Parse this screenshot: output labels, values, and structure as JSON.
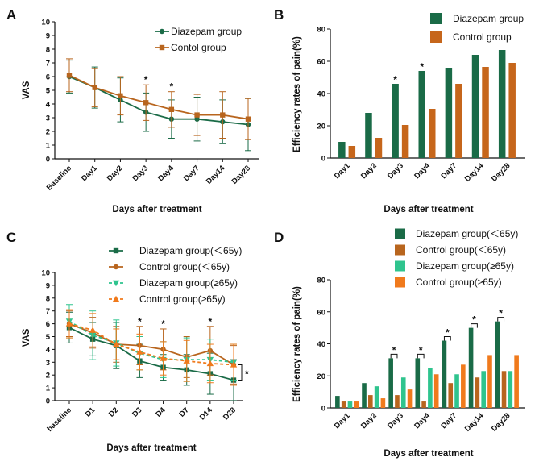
{
  "chart_data": [
    {
      "panel": "A",
      "type": "line",
      "xlabel": "Days after treatment",
      "ylabel": "VAS",
      "ylim": [
        0,
        10
      ],
      "yticks": [
        0,
        1,
        2,
        3,
        4,
        5,
        6,
        7,
        8,
        9,
        10
      ],
      "categories": [
        "Baseline",
        "Day1",
        "Day2",
        "Day3",
        "Day4",
        "Day7",
        "Day14",
        "Day28"
      ],
      "series": [
        {
          "name": "Diazepam group",
          "color": "#1a6b47",
          "marker": "circle",
          "dashed": false,
          "values": [
            6.0,
            5.2,
            4.3,
            3.4,
            2.9,
            2.9,
            2.7,
            2.5
          ],
          "errors": [
            1.2,
            1.5,
            1.6,
            1.4,
            1.4,
            1.6,
            1.6,
            1.9
          ]
        },
        {
          "name": "Contol group",
          "color": "#b8651e",
          "marker": "square",
          "dashed": false,
          "values": [
            6.1,
            5.2,
            4.6,
            4.1,
            3.6,
            3.2,
            3.2,
            2.9
          ],
          "errors": [
            1.2,
            1.4,
            1.4,
            1.3,
            1.3,
            1.5,
            1.7,
            1.5
          ]
        }
      ],
      "significance": [
        {
          "label": "*",
          "category": "Day3"
        },
        {
          "label": "*",
          "category": "Day4"
        }
      ],
      "legend_position": "top-right"
    },
    {
      "panel": "B",
      "type": "bar",
      "xlabel": "Days after treatment",
      "ylabel": "Efficiency rates of pain(%)",
      "ylim": [
        0,
        80
      ],
      "yticks": [
        0,
        20,
        40,
        60,
        80
      ],
      "categories": [
        "Day1",
        "Day2",
        "Day3",
        "Day4",
        "Day7",
        "Day14",
        "Day28"
      ],
      "series": [
        {
          "name": "Diazepam group",
          "color": "#1a6b47",
          "values": [
            10,
            28,
            46,
            54,
            56,
            64,
            67
          ]
        },
        {
          "name": "Control group",
          "color": "#c6661b",
          "values": [
            7.5,
            12.5,
            20.5,
            30.5,
            46,
            56.5,
            59
          ]
        }
      ],
      "significance": [
        {
          "label": "*",
          "category": "Day3"
        },
        {
          "label": "*",
          "category": "Day4"
        }
      ],
      "legend_position": "top-left"
    },
    {
      "panel": "C",
      "type": "line",
      "xlabel": "Days after treatment",
      "ylabel": "VAS",
      "ylim": [
        0,
        10
      ],
      "yticks": [
        0,
        1,
        2,
        3,
        4,
        5,
        6,
        7,
        8,
        9,
        10
      ],
      "categories": [
        "baseline",
        "D1",
        "D2",
        "D3",
        "D4",
        "D7",
        "D14",
        "D28"
      ],
      "series": [
        {
          "name": "Diazepam group(＜65y)",
          "color": "#1a6b47",
          "marker": "square",
          "dashed": false,
          "values": [
            5.7,
            4.8,
            4.3,
            3.1,
            2.6,
            2.4,
            2.1,
            1.6
          ],
          "errors": [
            1.2,
            1.3,
            1.8,
            1.3,
            1.0,
            1.2,
            1.6,
            1.6
          ]
        },
        {
          "name": "Control group(＜65y)",
          "color": "#b8651e",
          "marker": "circle",
          "dashed": false,
          "values": [
            6.0,
            5.3,
            4.4,
            4.3,
            4.0,
            3.4,
            3.9,
            2.8
          ],
          "errors": [
            1.0,
            1.2,
            1.4,
            1.5,
            1.6,
            1.6,
            1.9,
            1.5
          ]
        },
        {
          "name": "Diazepam group(≥65y)",
          "color": "#2fc48e",
          "marker": "triangle-down",
          "dashed": true,
          "values": [
            6.2,
            5.1,
            4.5,
            3.7,
            3.2,
            3.2,
            3.2,
            3.0
          ],
          "errors": [
            1.3,
            1.9,
            1.8,
            1.3,
            1.4,
            1.7,
            1.6,
            1.4
          ]
        },
        {
          "name": "Control group(≥65y)",
          "color": "#f07a1c",
          "marker": "triangle-up",
          "dashed": true,
          "values": [
            6.0,
            5.5,
            4.4,
            3.8,
            3.3,
            3.1,
            2.9,
            2.8
          ],
          "errors": [
            1.1,
            1.3,
            1.2,
            1.4,
            1.3,
            1.6,
            1.5,
            1.6
          ]
        }
      ],
      "significance": [
        {
          "label": "*",
          "category": "D3"
        },
        {
          "label": "*",
          "category": "D4"
        },
        {
          "label": "*",
          "category": "D14"
        },
        {
          "label": "*",
          "category": "D28",
          "bracket": true
        }
      ],
      "legend_position": "top-right"
    },
    {
      "panel": "D",
      "type": "bar",
      "xlabel": "Days after treatment",
      "ylabel": "Efficiency rates of pain(%)",
      "ylim": [
        0,
        80
      ],
      "yticks": [
        0,
        20,
        40,
        60,
        80
      ],
      "categories": [
        "Day1",
        "Day2",
        "Day3",
        "Day4",
        "Day7",
        "Day14",
        "Day28"
      ],
      "series": [
        {
          "name": "Diazepam group(＜65y)",
          "color": "#1a6b47",
          "values": [
            7.5,
            15.5,
            31,
            31,
            42,
            50,
            54
          ]
        },
        {
          "name": "Control group(＜65y)",
          "color": "#b8651e",
          "values": [
            4,
            8,
            8,
            4,
            15.5,
            19,
            23
          ]
        },
        {
          "name": "Diazepam group(≥65y)",
          "color": "#2fc48e",
          "values": [
            4,
            13.5,
            19,
            25,
            21,
            23,
            23
          ]
        },
        {
          "name": "Control group(≥65y)",
          "color": "#f07a1c",
          "values": [
            4,
            6,
            11.5,
            21,
            27,
            33,
            33
          ]
        }
      ],
      "significance": [
        {
          "label": "*",
          "category": "Day3"
        },
        {
          "label": "*",
          "category": "Day4"
        },
        {
          "label": "*",
          "category": "Day7"
        },
        {
          "label": "*",
          "category": "Day14"
        },
        {
          "label": "*",
          "category": "Day28"
        }
      ],
      "legend_position": "top-left"
    }
  ]
}
